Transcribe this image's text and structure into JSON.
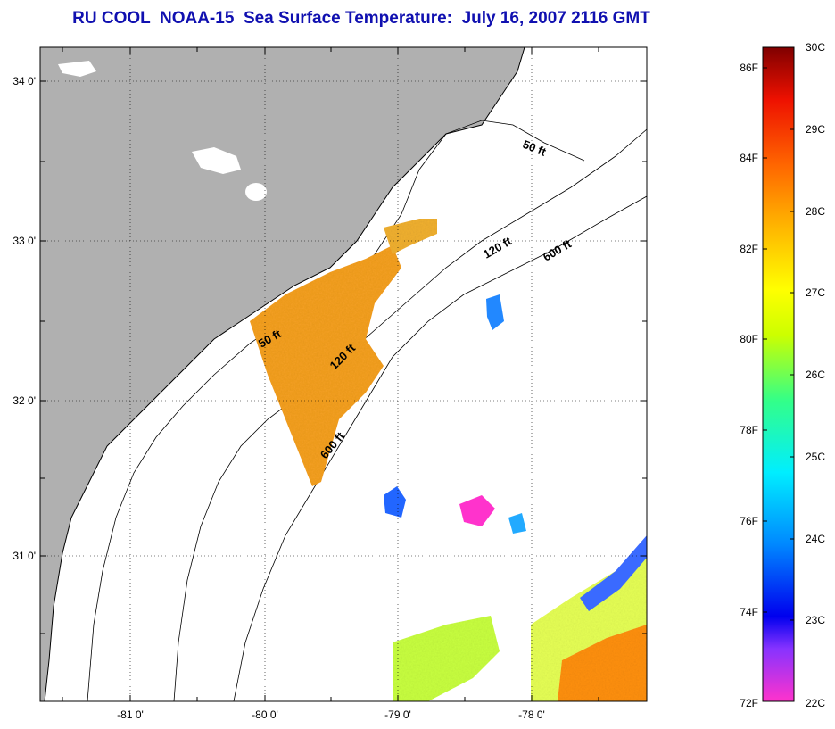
{
  "title": "RU COOL  NOAA-15  Sea Surface Temperature:  July 16, 2007 2116 GMT",
  "map": {
    "lat_ticks": [
      "34 0'",
      "33 0'",
      "32 0'",
      "31 0'"
    ],
    "lon_ticks": [
      "-81 0'",
      "-80 0'",
      "-79 0'",
      "-78 0'"
    ],
    "contours": [
      "50 ft",
      "120 ft",
      "600 ft",
      "50 ft",
      "120 ft",
      "600 ft"
    ],
    "colors": {
      "land": "#b0b0b0",
      "ocean": "#ffffff",
      "coast": "#000000"
    }
  },
  "colorbar": {
    "fahrenheit_labels": [
      "86F",
      "84F",
      "82F",
      "80F",
      "78F",
      "76F",
      "74F",
      "72F"
    ],
    "celsius_labels": [
      "30C",
      "29C",
      "28C",
      "27C",
      "26C",
      "25C",
      "24C",
      "23C",
      "22C"
    ],
    "colors": [
      "#ff33cc",
      "#8833ff",
      "#0000ee",
      "#0088ff",
      "#00eeff",
      "#33ff88",
      "#ccff00",
      "#ffff00",
      "#ffaa00",
      "#ff6600",
      "#ee1100",
      "#800000"
    ]
  }
}
